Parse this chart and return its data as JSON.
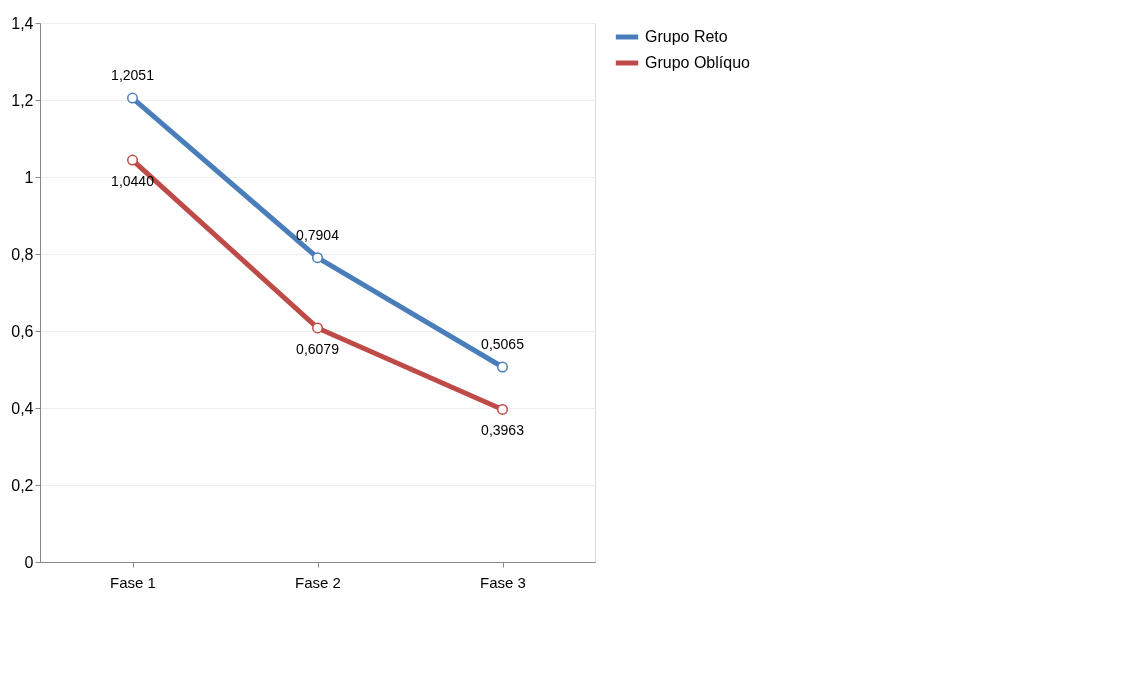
{
  "chart_data": {
    "type": "line",
    "categories": [
      "Fase 1",
      "Fase 2",
      "Fase 3"
    ],
    "series": [
      {
        "name": "Grupo Reto",
        "color": "#4a7ebb",
        "values": [
          1.2051,
          0.7904,
          0.5065
        ],
        "value_labels": [
          "1,2051",
          "0,7904",
          "0,5065"
        ]
      },
      {
        "name": "Grupo Oblíquo",
        "color": "#be4b48",
        "values": [
          1.044,
          0.6079,
          0.3963
        ],
        "value_labels": [
          "1,0440",
          "0,6079",
          "0,3963"
        ]
      }
    ],
    "ylim": [
      0,
      1.4
    ],
    "yticks": [
      0,
      {
        "value": 0.2,
        "label": "0,2"
      },
      {
        "value": 0.4,
        "label": "0,4"
      },
      {
        "value": 0.6,
        "label": "0,6"
      },
      {
        "value": 0.8,
        "label": "0,8"
      },
      1,
      {
        "value": 1.2,
        "label": "1,2"
      },
      {
        "value": 1.4,
        "label": "1,4"
      }
    ],
    "grid": "y",
    "legend": "right",
    "marker": "circle",
    "line_style": "solid"
  }
}
